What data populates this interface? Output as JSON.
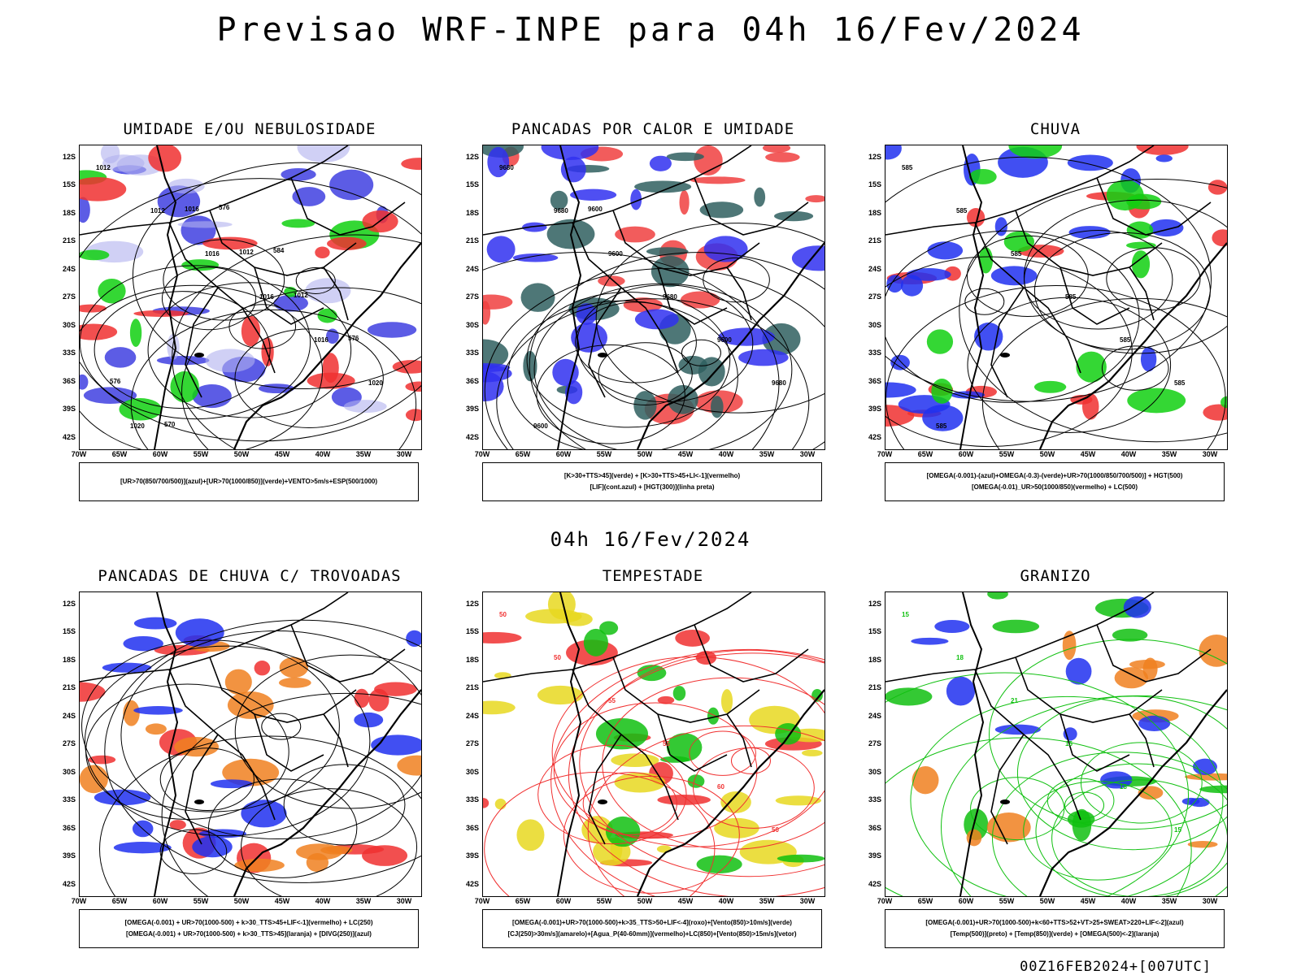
{
  "title": "Previsao WRF-INPE  para 04h 16/Fev/2024",
  "mid_title": "04h 16/Fev/2024",
  "footer": "00Z16FEB2024+[007UTC]",
  "lat_labels": [
    "12S",
    "15S",
    "18S",
    "21S",
    "24S",
    "27S",
    "30S",
    "33S",
    "36S",
    "39S",
    "42S"
  ],
  "lon_labels": [
    "70W",
    "65W",
    "60W",
    "55W",
    "50W",
    "45W",
    "40W",
    "35W",
    "30W"
  ],
  "panels": [
    {
      "title": "UMIDADE E/OU NEBULOSIDADE",
      "caption": [
        "[UR>70(850/700/500)](azul)+[UR>70(1000/850)](verde)+VENTO>5m/s+ESP(500/1000)"
      ],
      "colors": {
        "blue": "#4040e0",
        "lavender": "#b0b0ee",
        "green": "#10d010",
        "red": "#f03030",
        "black": "#000000"
      },
      "contour_labels": [
        "1012",
        "1012",
        "1016",
        "1016",
        "1016",
        "1020",
        "1020",
        "1016",
        "1012",
        "1012",
        "576",
        "576",
        "570",
        "576",
        "584"
      ]
    },
    {
      "title": "PANCADAS POR CALOR E UMIDADE",
      "caption": [
        "[K>30+TTS>45](verde) + [K>30+TTS>45+LI<-1](vermelho)",
        "[LIF](cont.azul) + [HGT(300)](linha preta)"
      ],
      "colors": {
        "red": "#f04040",
        "teal": "#2f5f5f",
        "blue": "#3030f0",
        "black": "#000000"
      },
      "contour_labels": [
        "9680",
        "9680",
        "9600",
        "9680",
        "9600",
        "9680",
        "9600",
        "9600"
      ]
    },
    {
      "title": "CHUVA",
      "caption": [
        "[OMEGA(-0.001)-(azul)+OMEGA(-0.3)-(verde)+UR>70(1000/850/700/500)] + HGT(500)",
        "[OMEGA(-0.01)_UR>50(1000/850)(vermelho) + LC(500)"
      ],
      "colors": {
        "red": "#f03030",
        "blue": "#2030f0",
        "green": "#10d010",
        "black": "#000000"
      },
      "contour_labels": [
        "585",
        "585",
        "585",
        "585",
        "585",
        "585",
        "585"
      ]
    },
    {
      "title": "PANCADAS DE CHUVA C/ TROVOADAS",
      "caption": [
        "[OMEGA(-0.001) + UR>70(1000-500) + k>30_TTS>45+LIF<-1](vermelho) + LC(250)",
        "[OMEGA(-0.001) + UR>70(1000-500) + k>30_TTS>45](laranja) + [DIVG(250)](azul)"
      ],
      "colors": {
        "red": "#f03030",
        "orange": "#f08020",
        "blue": "#2030f0",
        "black": "#000000"
      },
      "contour_labels": []
    },
    {
      "title": "TEMPESTADE",
      "caption": [
        "[OMEGA(-0.001)+UR>70(1000-500)+k>35_TTS>50+LIF<-4](roxo)+[Vento(850)>10m/s](verde)",
        "[CJ(250)>30m/s](amarelo)+[Agua_P(40-60mm)](vermelho)+LC(850)+[Vento(850)>15m/s](vetor)"
      ],
      "colors": {
        "red": "#f03030",
        "yellow": "#e8d820",
        "green": "#10c010",
        "black": "#000000"
      },
      "contour_labels": [
        "50",
        "50",
        "55",
        "55",
        "60",
        "50"
      ]
    },
    {
      "title": "GRANIZO",
      "caption": [
        "[OMEGA(-0.001)+UR>70(1000-500)+k<60+TTS>52+VT>25+SWEAT>220+LIF<-2](azul)",
        "[Temp(500)](preto) + [Temp(850)](verde) + [OMEGA(500)<-2](laranja)"
      ],
      "colors": {
        "green": "#10c010",
        "orange": "#f08020",
        "blue": "#2030f0",
        "black": "#000000"
      },
      "contour_labels": [
        "15",
        "18",
        "21",
        "15",
        "18",
        "15"
      ]
    }
  ]
}
